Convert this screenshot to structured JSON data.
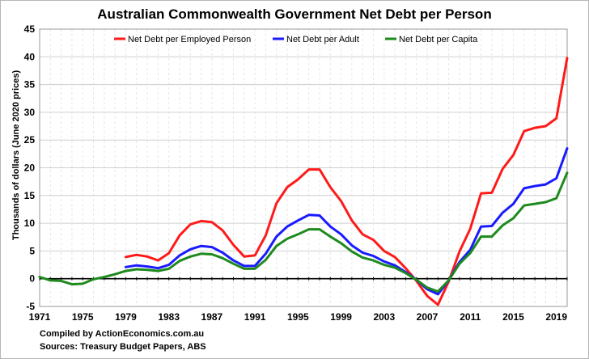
{
  "chart_data": {
    "type": "line",
    "title": "Australian Commonwealth Government Net Debt per Person",
    "ylabel": "Thousands of dollars (June 2020 prices)",
    "xlabel": "",
    "xlim": [
      1971,
      2020
    ],
    "ylim": [
      -5,
      45
    ],
    "yticks": [
      -5,
      0,
      5,
      10,
      15,
      20,
      25,
      30,
      35,
      40,
      45
    ],
    "xticks": [
      1971,
      1975,
      1979,
      1983,
      1987,
      1991,
      1995,
      1999,
      2003,
      2007,
      2011,
      2015,
      2019
    ],
    "grid": true,
    "legend_position": "top",
    "series": [
      {
        "name": "Net Debt per Employed Person",
        "color": "#ff1a1a",
        "x": [
          1979,
          1980,
          1981,
          1982,
          1983,
          1984,
          1985,
          1986,
          1987,
          1988,
          1989,
          1990,
          1991,
          1992,
          1993,
          1994,
          1995,
          1996,
          1997,
          1998,
          1999,
          2000,
          2001,
          2002,
          2003,
          2004,
          2005,
          2006,
          2007,
          2008,
          2009,
          2010,
          2011,
          2012,
          2013,
          2014,
          2015,
          2016,
          2017,
          2018,
          2019,
          2020
        ],
        "y": [
          3.9,
          4.3,
          4.0,
          3.3,
          4.6,
          7.8,
          9.8,
          10.4,
          10.2,
          8.7,
          6.1,
          4.0,
          4.2,
          7.8,
          13.6,
          16.5,
          17.9,
          19.7,
          19.7,
          16.5,
          14.0,
          10.5,
          8.0,
          7.0,
          5.0,
          3.9,
          1.9,
          -0.4,
          -3.1,
          -4.7,
          -0.5,
          4.9,
          9.0,
          15.4,
          15.5,
          19.8,
          22.3,
          26.6,
          27.2,
          27.5,
          28.9,
          39.8
        ]
      },
      {
        "name": "Net Debt per Adult",
        "color": "#1a1aff",
        "x": [
          1979,
          1980,
          1981,
          1982,
          1983,
          1984,
          1985,
          1986,
          1987,
          1988,
          1989,
          1990,
          1991,
          1992,
          1993,
          1994,
          1995,
          1996,
          1997,
          1998,
          1999,
          2000,
          2001,
          2002,
          2003,
          2004,
          2005,
          2006,
          2007,
          2008,
          2009,
          2010,
          2011,
          2012,
          2013,
          2014,
          2015,
          2016,
          2017,
          2018,
          2019,
          2020
        ],
        "y": [
          2.1,
          2.4,
          2.2,
          1.9,
          2.5,
          4.2,
          5.3,
          5.9,
          5.7,
          4.7,
          3.3,
          2.3,
          2.3,
          4.5,
          7.6,
          9.4,
          10.5,
          11.5,
          11.4,
          9.4,
          8.0,
          6.0,
          4.7,
          4.1,
          3.1,
          2.4,
          1.2,
          -0.2,
          -1.9,
          -2.8,
          -0.3,
          3.0,
          5.2,
          9.4,
          9.5,
          11.9,
          13.5,
          16.3,
          16.7,
          17.0,
          18.1,
          23.5
        ]
      },
      {
        "name": "Net Debt per Capita",
        "color": "#1e8a1e",
        "x": [
          1971,
          1972,
          1973,
          1974,
          1975,
          1976,
          1977,
          1978,
          1979,
          1980,
          1981,
          1982,
          1983,
          1984,
          1985,
          1986,
          1987,
          1988,
          1989,
          1990,
          1991,
          1992,
          1993,
          1994,
          1995,
          1996,
          1997,
          1998,
          1999,
          2000,
          2001,
          2002,
          2003,
          2004,
          2005,
          2006,
          2007,
          2008,
          2009,
          2010,
          2011,
          2012,
          2013,
          2014,
          2015,
          2016,
          2017,
          2018,
          2019,
          2020
        ],
        "y": [
          0.3,
          -0.3,
          -0.4,
          -1.0,
          -0.9,
          -0.1,
          0.3,
          0.8,
          1.4,
          1.7,
          1.6,
          1.4,
          1.8,
          3.2,
          4.0,
          4.5,
          4.4,
          3.7,
          2.7,
          1.8,
          1.8,
          3.4,
          5.9,
          7.2,
          8.0,
          8.9,
          8.9,
          7.6,
          6.4,
          4.9,
          3.8,
          3.3,
          2.5,
          2.0,
          1.0,
          -0.2,
          -1.6,
          -2.3,
          -0.3,
          2.7,
          4.6,
          7.6,
          7.6,
          9.6,
          10.9,
          13.2,
          13.5,
          13.8,
          14.5,
          19.1
        ]
      }
    ]
  },
  "footer": {
    "compiled": "Compiled by ActionEconomics.com.au",
    "sources": "Sources: Treasury Budget Papers, ABS"
  }
}
